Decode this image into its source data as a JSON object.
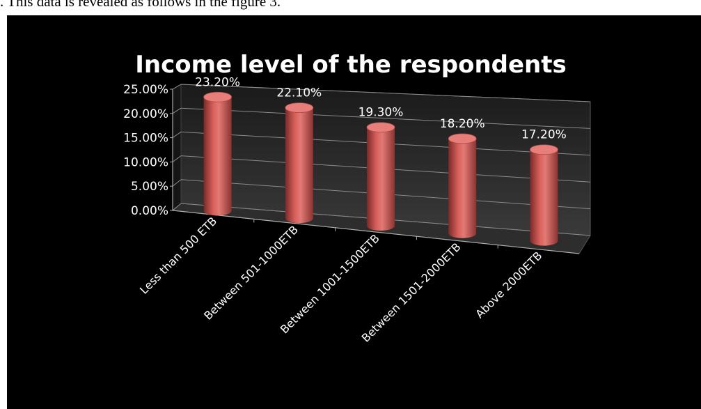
{
  "document": {
    "caption_text": ". This data is revealed as follows in the figure 3."
  },
  "chart_data": {
    "type": "bar",
    "style": "3d-cylinder",
    "title": "Income level of the respondents",
    "categories": [
      "Less than 500 ETB",
      "Between 501-1000ETB",
      "Between 1001-1500ETB",
      "Between 1501-2000ETB",
      "Above 2000ETB"
    ],
    "values": [
      23.2,
      22.1,
      19.3,
      18.2,
      17.2
    ],
    "data_labels": [
      "23.20%",
      "22.10%",
      "19.30%",
      "18.20%",
      "17.20%"
    ],
    "y_ticks": [
      "0.00%",
      "5.00%",
      "10.00%",
      "15.00%",
      "20.00%",
      "25.00%"
    ],
    "ylim": [
      0,
      25
    ],
    "xlabel": "",
    "ylabel": "",
    "grid": true,
    "legend": "none",
    "colors": {
      "background": "#000000",
      "bar": "#c0504d",
      "text": "#ffffff",
      "grid": "#8a8a8a"
    }
  }
}
